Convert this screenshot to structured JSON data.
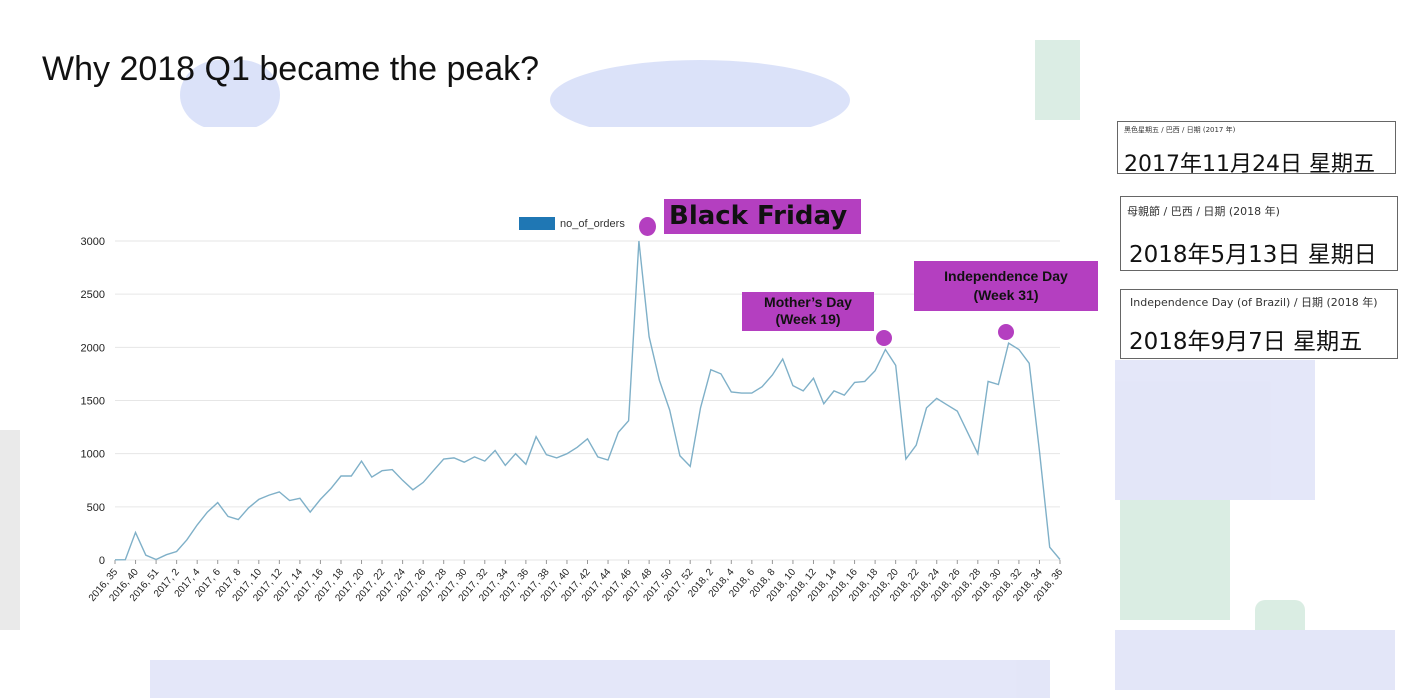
{
  "slide": {
    "title": "Why 2018 Q1 became the peak?"
  },
  "colors": {
    "line": "#7fb0c8",
    "legend_swatch": "#1f77b4",
    "callout": "#b43fc0",
    "grid": "#e6e6e6"
  },
  "chart_data": {
    "type": "line",
    "title": "",
    "xlabel": "",
    "ylabel": "",
    "ylim": [
      0,
      3000
    ],
    "y_ticks": [
      0,
      500,
      1000,
      1500,
      2000,
      2500,
      3000
    ],
    "grid": true,
    "legend_position": "top-center",
    "x_tick_labels": [
      "2016, 35",
      "2016, 40",
      "2016, 51",
      "2017, 2",
      "2017, 4",
      "2017, 6",
      "2017, 8",
      "2017, 10",
      "2017, 12",
      "2017, 14",
      "2017, 16",
      "2017, 18",
      "2017, 20",
      "2017, 22",
      "2017, 24",
      "2017, 26",
      "2017, 28",
      "2017, 30",
      "2017, 32",
      "2017, 34",
      "2017, 36",
      "2017, 38",
      "2017, 40",
      "2017, 42",
      "2017, 44",
      "2017, 46",
      "2017, 48",
      "2017, 50",
      "2017, 52",
      "2018, 2",
      "2018, 4",
      "2018, 6",
      "2018, 8",
      "2018, 10",
      "2018, 12",
      "2018, 14",
      "2018, 16",
      "2018, 18",
      "2018, 20",
      "2018, 22",
      "2018, 24",
      "2018, 26",
      "2018, 28",
      "2018, 30",
      "2018, 32",
      "2018, 34",
      "2018, 36"
    ],
    "series": [
      {
        "name": "no_of_orders",
        "values": [
          2,
          3,
          260,
          45,
          5,
          50,
          80,
          190,
          330,
          450,
          540,
          410,
          380,
          490,
          570,
          610,
          640,
          560,
          580,
          450,
          570,
          670,
          790,
          790,
          930,
          780,
          840,
          850,
          750,
          660,
          730,
          840,
          950,
          960,
          920,
          970,
          930,
          1030,
          890,
          1000,
          900,
          1160,
          990,
          960,
          1000,
          1060,
          1140,
          970,
          940,
          1200,
          1310,
          3000,
          2100,
          1690,
          1410,
          980,
          880,
          1430,
          1790,
          1750,
          1580,
          1570,
          1570,
          1630,
          1740,
          1890,
          1640,
          1590,
          1710,
          1470,
          1590,
          1550,
          1670,
          1680,
          1780,
          1980,
          1830,
          950,
          1080,
          1430,
          1520,
          1460,
          1400,
          1200,
          1000,
          1680,
          1650,
          2040,
          1980,
          1850,
          1020,
          120,
          5
        ]
      }
    ]
  },
  "callouts": {
    "black_friday": "Black Friday",
    "mothers_day": "Mother’s Day\n(Week 19)",
    "independence_day": "Independence Day\n(Week 31)"
  },
  "date_cards": [
    {
      "caption": "黑色星期五 / 巴西 / 日期 (2017 年)",
      "date": "2017年11月24日 星期五"
    },
    {
      "caption": "母親節 / 巴西 / 日期 (2018 年)",
      "date": "2018年5月13日 星期日"
    },
    {
      "caption": "Independence Day (of Brazil) / 日期 (2018 年)",
      "date": "2018年9月7日 星期五"
    }
  ]
}
